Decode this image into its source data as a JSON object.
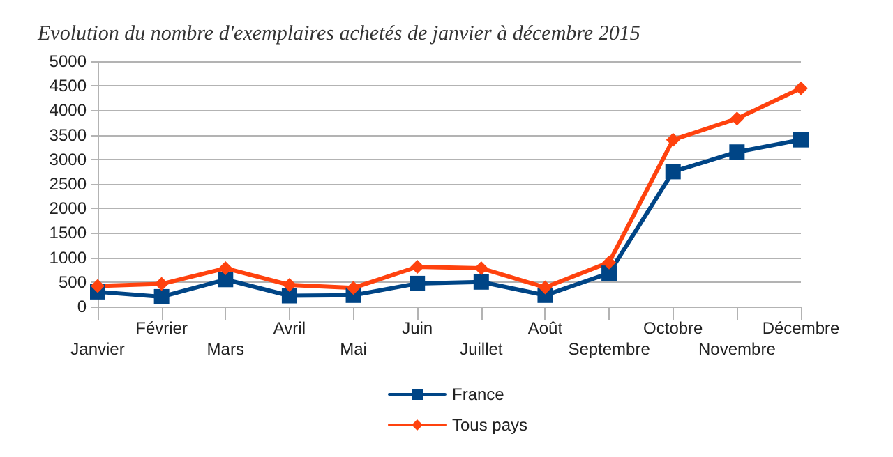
{
  "chart_data": {
    "type": "line",
    "title": "Evolution du nombre d'exemplaires achetés de janvier à décembre 2015",
    "categories": [
      "Janvier",
      "Février",
      "Mars",
      "Avril",
      "Mai",
      "Juin",
      "Juillet",
      "Août",
      "Septembre",
      "Octobre",
      "Novembre",
      "Décembre"
    ],
    "series": [
      {
        "name": "France",
        "color": "#004586",
        "marker": "square",
        "values": [
          300,
          200,
          550,
          220,
          230,
          470,
          500,
          230,
          680,
          2750,
          3150,
          3400
        ]
      },
      {
        "name": "Tous pays",
        "color": "#ff420e",
        "marker": "diamond",
        "values": [
          420,
          460,
          780,
          440,
          380,
          810,
          780,
          390,
          900,
          3400,
          3830,
          4450
        ]
      }
    ],
    "ylim": [
      0,
      5000
    ],
    "yticks": [
      0,
      500,
      1000,
      1500,
      2000,
      2500,
      3000,
      3500,
      4000,
      4500,
      5000
    ],
    "grid": "y",
    "legend": "bottom",
    "line_style": "solid"
  }
}
